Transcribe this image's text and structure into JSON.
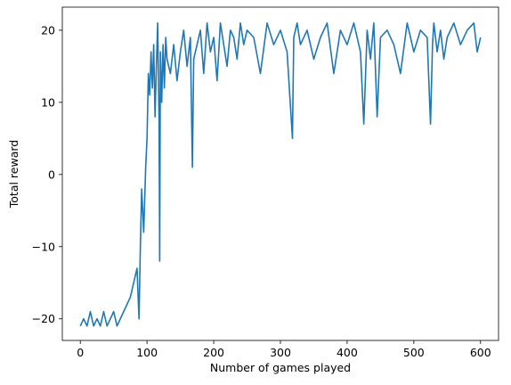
{
  "chart_data": {
    "type": "line",
    "xlabel": "Number of games played",
    "ylabel": "Total reward",
    "xlim": [
      -27,
      627
    ],
    "ylim": [
      -23,
      23.2
    ],
    "xticks": [
      0,
      100,
      200,
      300,
      400,
      500,
      600
    ],
    "yticks": [
      -20,
      -10,
      0,
      10,
      20
    ],
    "grid": false,
    "line_color": "#1f77b4",
    "series": [
      {
        "x": [
          0,
          5,
          10,
          15,
          20,
          25,
          30,
          35,
          40,
          45,
          50,
          55,
          60,
          65,
          70,
          75,
          80,
          85,
          88,
          90,
          92,
          95,
          98,
          100,
          102,
          104,
          106,
          108,
          110,
          112,
          114,
          116,
          117,
          118,
          119,
          120,
          122,
          124,
          126,
          128,
          130,
          135,
          140,
          145,
          150,
          155,
          160,
          165,
          168,
          170,
          175,
          180,
          185,
          190,
          195,
          200,
          205,
          210,
          215,
          220,
          225,
          230,
          235,
          240,
          245,
          250,
          260,
          270,
          280,
          290,
          300,
          310,
          318,
          320,
          325,
          330,
          340,
          350,
          360,
          370,
          380,
          390,
          400,
          410,
          420,
          425,
          430,
          435,
          440,
          445,
          450,
          460,
          470,
          480,
          490,
          500,
          510,
          520,
          525,
          528,
          530,
          535,
          540,
          545,
          550,
          560,
          570,
          580,
          590,
          595,
          600
        ],
        "y": [
          -21,
          -20,
          -21,
          -19,
          -21,
          -20,
          -21,
          -19,
          -21,
          -20,
          -19,
          -21,
          -20,
          -19,
          -18,
          -17,
          -15,
          -13,
          -20,
          -10,
          -2,
          -8,
          1,
          5,
          14,
          11,
          17,
          12,
          18,
          8,
          15,
          21,
          14,
          8,
          -12,
          17,
          10,
          18,
          12,
          19,
          16,
          14,
          18,
          13,
          17,
          20,
          15,
          19,
          1,
          16,
          18,
          20,
          14,
          21,
          17,
          19,
          13,
          21,
          18,
          15,
          20,
          19,
          16,
          21,
          18,
          20,
          19,
          14,
          21,
          18,
          20,
          17,
          5,
          19,
          21,
          18,
          20,
          16,
          19,
          21,
          14,
          20,
          18,
          21,
          17,
          7,
          20,
          16,
          21,
          8,
          19,
          20,
          18,
          14,
          21,
          17,
          20,
          19,
          7,
          18,
          21,
          17,
          20,
          16,
          19,
          21,
          18,
          20,
          21,
          17,
          19
        ]
      }
    ]
  }
}
